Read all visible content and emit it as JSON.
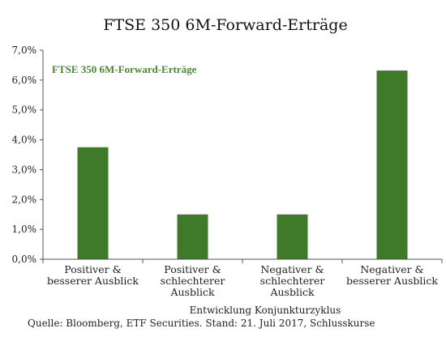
{
  "chart_data": {
    "type": "bar",
    "title": "FTSE 350 6M-Forward-Erträge",
    "xlabel": "Entwicklung Konjunkturzyklus",
    "ylabel": "",
    "ylim": [
      0,
      7
    ],
    "yticks": [
      "0,0%",
      "1,0%",
      "2,0%",
      "3,0%",
      "4,0%",
      "5,0%",
      "6,0%",
      "7,0%"
    ],
    "categories": [
      [
        "Positiver &",
        "besserer Ausblick"
      ],
      [
        "Positiver &",
        "schlechterer",
        "Ausblick"
      ],
      [
        "Negativer &",
        "schlechterer",
        "Ausblick"
      ],
      [
        "Negativer &",
        "besserer Ausblick"
      ]
    ],
    "series": [
      {
        "name": "FTSE 350 6M-Forward-Erträge",
        "values": [
          3.75,
          1.5,
          1.5,
          6.32
        ]
      }
    ],
    "legend_position": "top-left",
    "grid": false,
    "colors": {
      "bar": "#3f7a2b",
      "legend_text": "#4a8a2e",
      "axis": "#555555"
    },
    "source": "Quelle: Bloomberg, ETF Securities. Stand: 21. Juli 2017, Schlusskurse"
  }
}
